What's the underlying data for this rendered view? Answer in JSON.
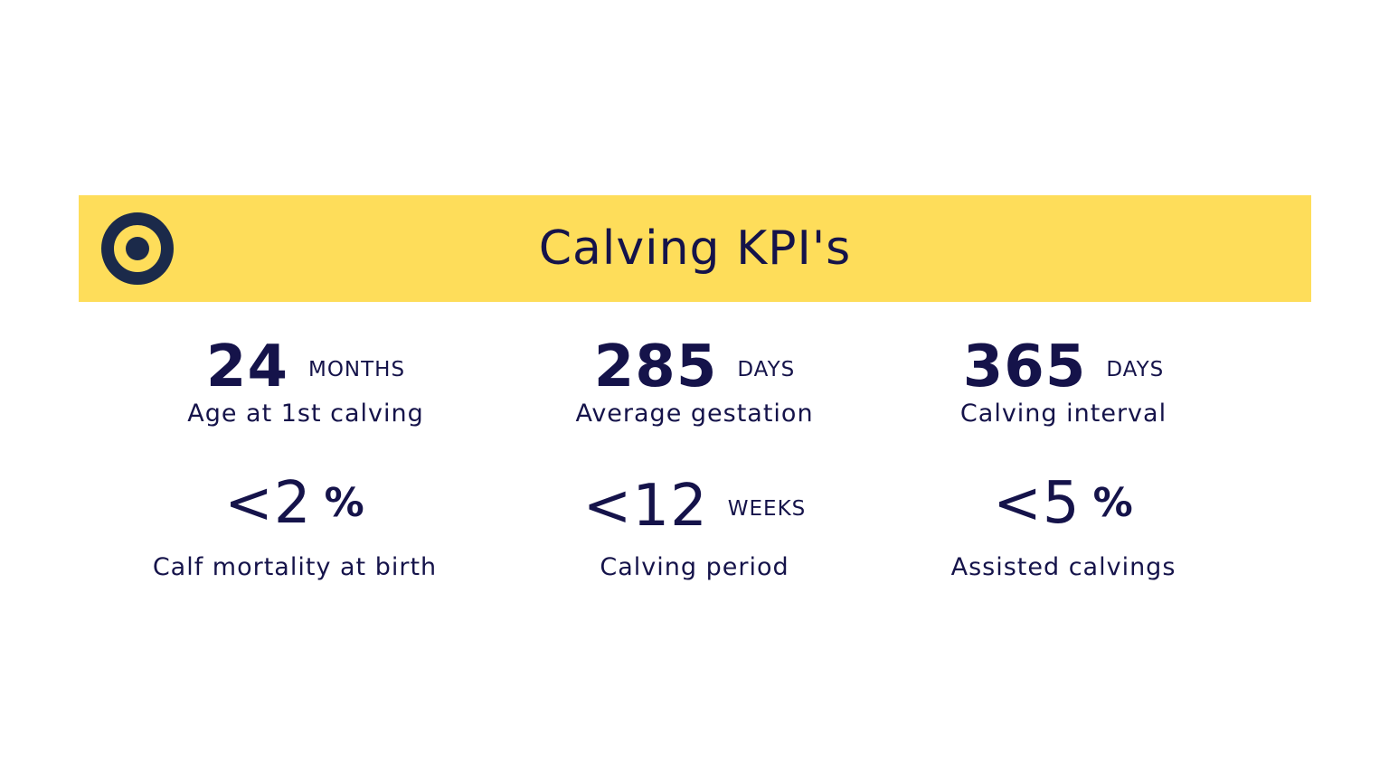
{
  "banner": {
    "title": "Calving KPI's",
    "icon": "target-icon",
    "background_color": "#fedd5a",
    "text_color": "#15134a"
  },
  "kpis": [
    {
      "value": "24",
      "unit": "MONTHS",
      "label": "Age at 1st calving"
    },
    {
      "value": "285",
      "unit": "DAYS",
      "label": "Average gestation"
    },
    {
      "value": "365",
      "unit": "DAYS",
      "label": "Calving interval"
    },
    {
      "value": "<2",
      "unit": "%",
      "label": "Calf mortality at birth"
    },
    {
      "value": "<12",
      "unit": "WEEKS",
      "label": "Calving period"
    },
    {
      "value": "<5",
      "unit": "%",
      "label": "Assisted calvings"
    }
  ]
}
